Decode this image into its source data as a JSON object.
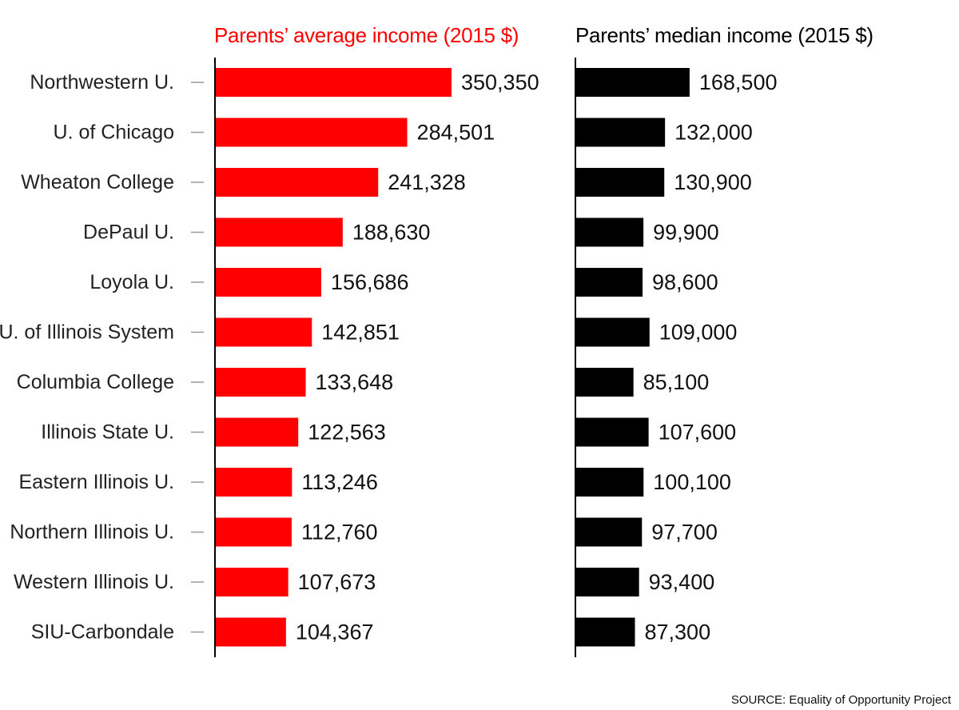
{
  "chart_data": {
    "type": "bar",
    "orientation": "horizontal",
    "categories": [
      "Northwestern U.",
      "U. of Chicago",
      "Wheaton College",
      "DePaul U.",
      "Loyola U.",
      "U. of Illinois System",
      "Columbia College",
      "Illinois State U.",
      "Eastern Illinois U.",
      "Northern Illinois U.",
      "Western Illinois U.",
      "SIU-Carbondale"
    ],
    "panels": [
      {
        "title": "Parents’ average income (2015 $)",
        "color": "#ff0000",
        "values": [
          350350,
          284501,
          241328,
          188630,
          156686,
          142851,
          133648,
          122563,
          113246,
          112760,
          107673,
          104367
        ],
        "value_labels": [
          "350,350",
          "284,501",
          "241,328",
          "188,630",
          "156,686",
          "142,851",
          "133,648",
          "122,563",
          "113,246",
          "112,760",
          "107,673",
          "104,367"
        ]
      },
      {
        "title": "Parents’ median income (2015 $)",
        "color": "#000000",
        "values": [
          168500,
          132000,
          130900,
          99900,
          98600,
          109000,
          85100,
          107600,
          100100,
          97700,
          93400,
          87300
        ],
        "value_labels": [
          "168,500",
          "132,000",
          "130,900",
          "99,900",
          "98,600",
          "109,000",
          "85,100",
          "107,600",
          "100,100",
          "97,700",
          "93,400",
          "87,300"
        ]
      }
    ],
    "grid": false,
    "legend": "none"
  },
  "source": "SOURCE: Equality of Opportunity Project"
}
